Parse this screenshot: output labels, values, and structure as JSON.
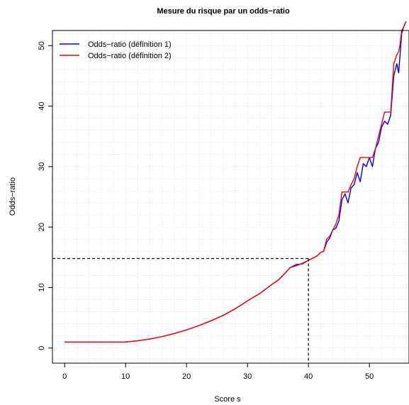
{
  "chart_data": {
    "type": "line",
    "title": "Mesure du risque par un odds−ratio",
    "xlabel": "Score s",
    "ylabel": "Odds−ratio",
    "xlim": [
      -2,
      56.5
    ],
    "ylim": [
      -2.5,
      52.5
    ],
    "x_ticks": [
      0,
      10,
      20,
      30,
      40,
      50
    ],
    "y_ticks": [
      0,
      10,
      20,
      30,
      40,
      50
    ],
    "grid": true,
    "legend_position": "top-left",
    "series": [
      {
        "name": "Odds−ratio (définition 1)",
        "color": "#0000ff",
        "x": [
          0,
          5,
          10,
          12,
          14,
          16,
          18,
          20,
          22,
          24,
          26,
          28,
          30,
          32,
          34,
          35,
          36,
          37,
          38,
          39,
          40,
          41,
          41.5,
          42,
          42.5,
          43,
          43.5,
          44,
          44.5,
          45,
          45.5,
          46,
          46.5,
          47,
          47.5,
          48,
          48.5,
          49,
          49.5,
          50,
          50.5,
          51,
          51.5,
          52,
          52.5,
          53,
          53.5,
          54,
          54.5,
          54.8,
          55,
          55.3,
          55.6,
          56
        ],
        "y": [
          1.0,
          1.0,
          1.0,
          1.2,
          1.5,
          1.9,
          2.4,
          3.0,
          3.7,
          4.5,
          5.4,
          6.5,
          7.8,
          9.0,
          10.5,
          11.2,
          12.2,
          13.3,
          13.8,
          13.9,
          14.5,
          15.0,
          15.3,
          15.8,
          16.0,
          17.5,
          18.2,
          19.5,
          19.8,
          21.0,
          24.5,
          25.5,
          24.0,
          26.5,
          27.0,
          29.0,
          27.5,
          30.5,
          30.0,
          31.5,
          30.0,
          33.0,
          34.0,
          36.5,
          37.5,
          37.0,
          38.5,
          45.0,
          47.0,
          45.5,
          48.0,
          52.0,
          53.0,
          54.0
        ]
      },
      {
        "name": "Odds−ratio (définition 2)",
        "color": "#ff0000",
        "x": [
          0,
          5,
          10,
          12,
          14,
          16,
          18,
          20,
          22,
          24,
          26,
          28,
          30,
          32,
          34,
          35,
          36,
          37,
          38,
          39,
          40,
          41,
          41.5,
          42,
          42.5,
          43,
          43.5,
          44,
          44.5,
          45,
          45.5,
          46,
          46.5,
          47,
          47.5,
          48,
          48.5,
          49,
          49.5,
          50,
          50.5,
          51,
          51.5,
          52,
          52.5,
          53,
          53.5,
          54,
          54.5,
          54.8,
          55,
          55.3,
          55.6,
          56
        ],
        "y": [
          1.0,
          1.0,
          1.0,
          1.2,
          1.5,
          1.9,
          2.4,
          3.0,
          3.7,
          4.5,
          5.4,
          6.5,
          7.8,
          9.0,
          10.5,
          11.2,
          12.2,
          13.3,
          13.6,
          14.0,
          14.5,
          15.0,
          15.3,
          15.8,
          16.0,
          18.0,
          18.5,
          19.5,
          20.5,
          22.0,
          25.8,
          25.8,
          25.8,
          27.0,
          28.0,
          30.0,
          31.5,
          31.5,
          31.5,
          31.5,
          31.5,
          33.0,
          35.0,
          37.0,
          39.0,
          39.0,
          39.0,
          47.0,
          48.5,
          49.0,
          50.0,
          52.5,
          53.0,
          54.0
        ]
      }
    ],
    "reference_point": {
      "x": 40,
      "y": 14.8
    }
  }
}
